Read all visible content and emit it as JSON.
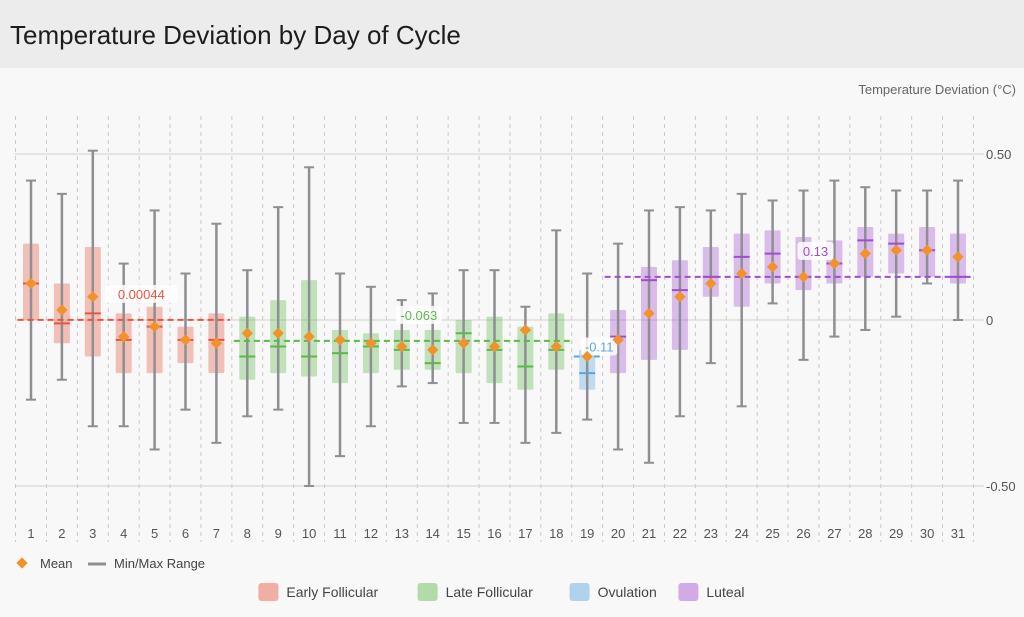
{
  "header": {
    "title": "Temperature Deviation by Day of Cycle"
  },
  "chart_data": {
    "type": "box",
    "title": "Temperature Deviation by Day of Cycle",
    "ylabel": "Temperature Deviation (°C)",
    "xlabel": "",
    "ylim": [
      -0.65,
      0.62
    ],
    "yticks": [
      0.5,
      0,
      -0.5
    ],
    "ytick_labels": [
      "0.50",
      "0",
      "-0.50"
    ],
    "grid": true,
    "days": [
      1,
      2,
      3,
      4,
      5,
      6,
      7,
      8,
      9,
      10,
      11,
      12,
      13,
      14,
      15,
      16,
      17,
      18,
      19,
      20,
      21,
      22,
      23,
      24,
      25,
      26,
      27,
      28,
      29,
      30,
      31
    ],
    "phases": [
      {
        "name": "Early Follicular",
        "color": "#e8553f",
        "days": [
          1,
          7
        ],
        "mean": 0.00044,
        "mean_label": "0.00044"
      },
      {
        "name": "Late Follicular",
        "color": "#5cb84a",
        "days": [
          8,
          18
        ],
        "mean": -0.063,
        "mean_label": "-0.063"
      },
      {
        "name": "Ovulation",
        "color": "#5aa5e0",
        "days": [
          19,
          19
        ],
        "mean": -0.11,
        "mean_label": "-0.11"
      },
      {
        "name": "Luteal",
        "color": "#a04dd0",
        "days": [
          20,
          31
        ],
        "mean": 0.13,
        "mean_label": "0.13"
      }
    ],
    "series": [
      {
        "day": 1,
        "phase": 0,
        "min": -0.24,
        "max": 0.42,
        "q1": 0.0,
        "q3": 0.23,
        "median": 0.11,
        "mean": 0.11
      },
      {
        "day": 2,
        "phase": 0,
        "min": -0.18,
        "max": 0.38,
        "q1": -0.07,
        "q3": 0.11,
        "median": -0.01,
        "mean": 0.03
      },
      {
        "day": 3,
        "phase": 0,
        "min": -0.32,
        "max": 0.51,
        "q1": -0.11,
        "q3": 0.22,
        "median": 0.02,
        "mean": 0.07
      },
      {
        "day": 4,
        "phase": 0,
        "min": -0.32,
        "max": 0.17,
        "q1": -0.16,
        "q3": 0.02,
        "median": -0.06,
        "mean": -0.05
      },
      {
        "day": 5,
        "phase": 0,
        "min": -0.39,
        "max": 0.33,
        "q1": -0.16,
        "q3": 0.04,
        "median": -0.02,
        "mean": -0.02
      },
      {
        "day": 6,
        "phase": 0,
        "min": -0.27,
        "max": 0.14,
        "q1": -0.13,
        "q3": -0.02,
        "median": -0.06,
        "mean": -0.06
      },
      {
        "day": 7,
        "phase": 0,
        "min": -0.37,
        "max": 0.29,
        "q1": -0.16,
        "q3": 0.02,
        "median": -0.06,
        "mean": -0.07
      },
      {
        "day": 8,
        "phase": 1,
        "min": -0.29,
        "max": 0.15,
        "q1": -0.18,
        "q3": 0.01,
        "median": -0.11,
        "mean": -0.04
      },
      {
        "day": 9,
        "phase": 1,
        "min": -0.27,
        "max": 0.34,
        "q1": -0.16,
        "q3": 0.06,
        "median": -0.08,
        "mean": -0.04
      },
      {
        "day": 10,
        "phase": 1,
        "min": -0.5,
        "max": 0.46,
        "q1": -0.17,
        "q3": 0.12,
        "median": -0.11,
        "mean": -0.05
      },
      {
        "day": 11,
        "phase": 1,
        "min": -0.41,
        "max": 0.14,
        "q1": -0.19,
        "q3": -0.03,
        "median": -0.1,
        "mean": -0.06
      },
      {
        "day": 12,
        "phase": 1,
        "min": -0.32,
        "max": 0.1,
        "q1": -0.16,
        "q3": -0.04,
        "median": -0.08,
        "mean": -0.07
      },
      {
        "day": 13,
        "phase": 1,
        "min": -0.2,
        "max": 0.06,
        "q1": -0.15,
        "q3": -0.03,
        "median": -0.09,
        "mean": -0.08
      },
      {
        "day": 14,
        "phase": 1,
        "min": -0.19,
        "max": 0.08,
        "q1": -0.15,
        "q3": -0.03,
        "median": -0.13,
        "mean": -0.09
      },
      {
        "day": 15,
        "phase": 1,
        "min": -0.31,
        "max": 0.15,
        "q1": -0.16,
        "q3": 0.0,
        "median": -0.04,
        "mean": -0.07
      },
      {
        "day": 16,
        "phase": 1,
        "min": -0.31,
        "max": 0.15,
        "q1": -0.19,
        "q3": 0.01,
        "median": -0.09,
        "mean": -0.08
      },
      {
        "day": 17,
        "phase": 1,
        "min": -0.37,
        "max": 0.04,
        "q1": -0.21,
        "q3": -0.02,
        "median": -0.14,
        "mean": -0.03
      },
      {
        "day": 18,
        "phase": 1,
        "min": -0.34,
        "max": 0.27,
        "q1": -0.15,
        "q3": 0.02,
        "median": -0.09,
        "mean": -0.08
      },
      {
        "day": 19,
        "phase": 2,
        "min": -0.3,
        "max": 0.14,
        "q1": -0.21,
        "q3": -0.09,
        "median": -0.16,
        "mean": -0.11
      },
      {
        "day": 20,
        "phase": 3,
        "min": -0.39,
        "max": 0.23,
        "q1": -0.16,
        "q3": 0.03,
        "median": -0.05,
        "mean": -0.06
      },
      {
        "day": 21,
        "phase": 3,
        "min": -0.43,
        "max": 0.33,
        "q1": -0.12,
        "q3": 0.16,
        "median": 0.12,
        "mean": 0.02
      },
      {
        "day": 22,
        "phase": 3,
        "min": -0.29,
        "max": 0.34,
        "q1": -0.09,
        "q3": 0.18,
        "median": 0.09,
        "mean": 0.07
      },
      {
        "day": 23,
        "phase": 3,
        "min": -0.13,
        "max": 0.33,
        "q1": 0.07,
        "q3": 0.22,
        "median": 0.13,
        "mean": 0.11
      },
      {
        "day": 24,
        "phase": 3,
        "min": -0.26,
        "max": 0.38,
        "q1": 0.04,
        "q3": 0.26,
        "median": 0.19,
        "mean": 0.14
      },
      {
        "day": 25,
        "phase": 3,
        "min": 0.05,
        "max": 0.36,
        "q1": 0.11,
        "q3": 0.27,
        "median": 0.2,
        "mean": 0.16
      },
      {
        "day": 26,
        "phase": 3,
        "min": -0.12,
        "max": 0.39,
        "q1": 0.09,
        "q3": 0.25,
        "median": 0.13,
        "mean": 0.13
      },
      {
        "day": 27,
        "phase": 3,
        "min": -0.05,
        "max": 0.42,
        "q1": 0.11,
        "q3": 0.24,
        "median": 0.17,
        "mean": 0.17
      },
      {
        "day": 28,
        "phase": 3,
        "min": -0.03,
        "max": 0.4,
        "q1": 0.13,
        "q3": 0.28,
        "median": 0.24,
        "mean": 0.2
      },
      {
        "day": 29,
        "phase": 3,
        "min": 0.01,
        "max": 0.39,
        "q1": 0.14,
        "q3": 0.26,
        "median": 0.23,
        "mean": 0.21
      },
      {
        "day": 30,
        "phase": 3,
        "min": 0.11,
        "max": 0.39,
        "q1": 0.13,
        "q3": 0.28,
        "median": 0.21,
        "mean": 0.21
      },
      {
        "day": 31,
        "phase": 3,
        "min": 0.0,
        "max": 0.42,
        "q1": 0.11,
        "q3": 0.26,
        "median": 0.13,
        "mean": 0.19
      }
    ],
    "legend": {
      "mean_label": "Mean",
      "range_label": "Min/Max Range",
      "mean_color": "#f0932b",
      "range_color": "#8e8e93"
    }
  }
}
